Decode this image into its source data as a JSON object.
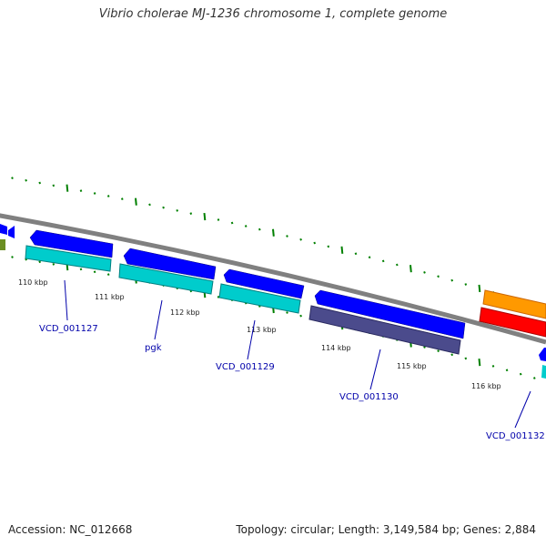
{
  "title": "Vibrio cholerae MJ-1236 chromosome 1, complete genome",
  "footer": {
    "accession": "Accession: NC_012668",
    "summary": "Topology: circular; Length: 3,149,584 bp; Genes: 2,884"
  },
  "colors": {
    "backbone": "#808080",
    "tick": "#008000",
    "label": "#0000aa",
    "cds_forward": "#0000ff",
    "gene_teal": "#00cccc",
    "gene_slate": "#4b4b8c",
    "gene_orange": "#ff9900",
    "gene_red": "#ff0000",
    "gene_olive": "#6b8e23"
  },
  "ticks": [
    "110 kbp",
    "111 kbp",
    "112 kbp",
    "113 kbp",
    "114 kbp",
    "115 kbp",
    "116 kbp"
  ],
  "gene_labels": [
    "VCD_001127",
    "pgk",
    "VCD_001129",
    "VCD_001130",
    "VCD_001132"
  ]
}
